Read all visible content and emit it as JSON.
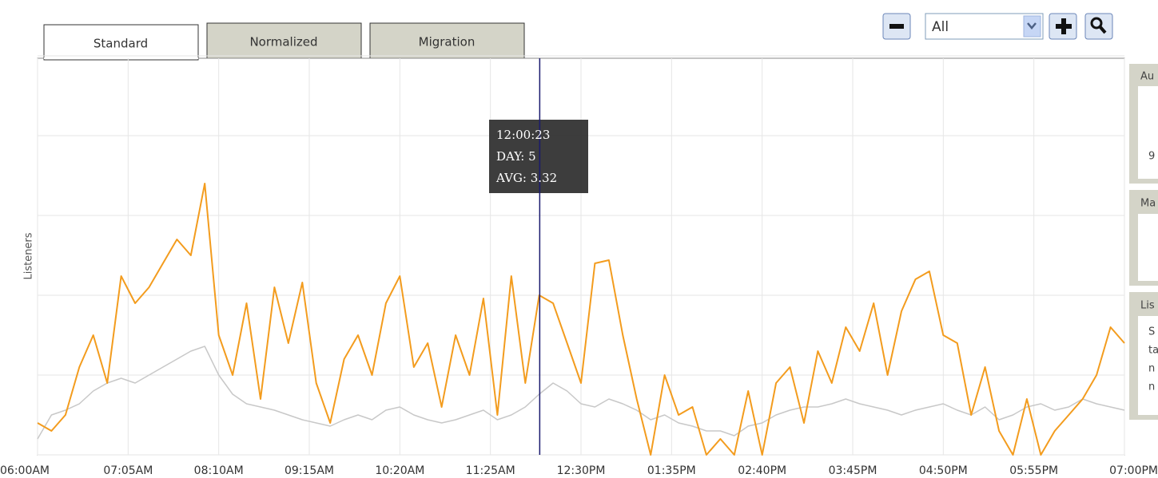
{
  "tabs": [
    "Standard",
    "Normalized",
    "Migration"
  ],
  "controls": {
    "range": "All"
  },
  "panels": [
    {
      "title": "Au",
      "lines": [
        "9"
      ]
    },
    {
      "title": "Ma",
      "lines": []
    },
    {
      "title": "Lis",
      "lines": [
        "S",
        "ta",
        "n",
        "n"
      ]
    }
  ],
  "tooltip": {
    "time": "12:00:23",
    "day": "DAY: 5",
    "avg": "AVG: 3.32"
  },
  "chart_data": {
    "type": "line",
    "y_label": "Listeners",
    "cursor_x": 720.38,
    "xlim": [
      360,
      1140
    ],
    "ylim": [
      0,
      12.5
    ],
    "xticks": [
      {
        "value": 360,
        "label": "06:00AM"
      },
      {
        "value": 425,
        "label": "07:05AM"
      },
      {
        "value": 490,
        "label": "08:10AM"
      },
      {
        "value": 555,
        "label": "09:15AM"
      },
      {
        "value": 620,
        "label": "10:20AM"
      },
      {
        "value": 685,
        "label": "11:25AM"
      },
      {
        "value": 750,
        "label": "12:30PM"
      },
      {
        "value": 815,
        "label": "01:35PM"
      },
      {
        "value": 880,
        "label": "02:40PM"
      },
      {
        "value": 945,
        "label": "03:45PM"
      },
      {
        "value": 1010,
        "label": "04:50PM"
      },
      {
        "value": 1075,
        "label": "05:55PM"
      },
      {
        "value": 1140,
        "label": "07:00PM"
      }
    ],
    "yticks": [
      0,
      2.5,
      5,
      7.5,
      10,
      12.5
    ],
    "grid": true,
    "x": [
      360,
      370,
      380,
      390,
      400,
      410,
      420,
      430,
      440,
      450,
      460,
      470,
      480,
      490,
      500,
      510,
      520,
      530,
      540,
      550,
      560,
      570,
      580,
      590,
      600,
      610,
      620,
      630,
      640,
      650,
      660,
      670,
      680,
      690,
      700,
      710,
      720,
      730,
      740,
      750,
      760,
      770,
      780,
      790,
      800,
      810,
      820,
      830,
      840,
      850,
      860,
      870,
      880,
      890,
      900,
      910,
      920,
      930,
      940,
      950,
      960,
      970,
      980,
      990,
      1000,
      1010,
      1020,
      1030,
      1040,
      1050,
      1060,
      1070,
      1080,
      1090,
      1100,
      1110,
      1120,
      1130,
      1140
    ],
    "series": [
      {
        "color": "#c8c8c8",
        "values": [
          0.5,
          1.25,
          1.4,
          1.6,
          2,
          2.25,
          2.4,
          2.25,
          2.5,
          2.75,
          3,
          3.25,
          3.4,
          2.5,
          1.9,
          1.6,
          1.5,
          1.4,
          1.25,
          1.1,
          1,
          0.9,
          1.1,
          1.25,
          1.1,
          1.4,
          1.5,
          1.25,
          1.1,
          1,
          1.1,
          1.25,
          1.4,
          1.1,
          1.25,
          1.5,
          1.9,
          2.25,
          2,
          1.6,
          1.5,
          1.75,
          1.6,
          1.4,
          1.1,
          1.25,
          1,
          0.9,
          0.75,
          0.75,
          0.6,
          0.9,
          1,
          1.25,
          1.4,
          1.5,
          1.5,
          1.6,
          1.75,
          1.6,
          1.5,
          1.4,
          1.25,
          1.4,
          1.5,
          1.6,
          1.4,
          1.25,
          1.5,
          1.1,
          1.25,
          1.5,
          1.6,
          1.4,
          1.5,
          1.75,
          1.6,
          1.5,
          1.4
        ]
      },
      {
        "color": "#f39c1e",
        "values": [
          1,
          0.75,
          1.25,
          2.75,
          3.75,
          2.25,
          5.6,
          4.75,
          5.25,
          6,
          6.75,
          6.25,
          8.5,
          3.75,
          2.5,
          4.75,
          1.75,
          5.25,
          3.5,
          5.4,
          2.25,
          1,
          3,
          3.75,
          2.5,
          4.75,
          5.6,
          2.75,
          3.5,
          1.5,
          3.75,
          2.5,
          4.9,
          1.25,
          5.6,
          2.25,
          5,
          4.75,
          3.5,
          2.25,
          6,
          6.1,
          3.75,
          1.75,
          0,
          2.5,
          1.25,
          1.5,
          0,
          0.5,
          0,
          2,
          0,
          2.25,
          2.75,
          1,
          3.25,
          2.25,
          4,
          3.25,
          4.75,
          2.5,
          4.5,
          5.5,
          5.75,
          3.75,
          3.5,
          1.25,
          2.75,
          0.75,
          0,
          1.75,
          0,
          0.75,
          1.25,
          1.75,
          2.5,
          4,
          3.5
        ]
      }
    ]
  }
}
